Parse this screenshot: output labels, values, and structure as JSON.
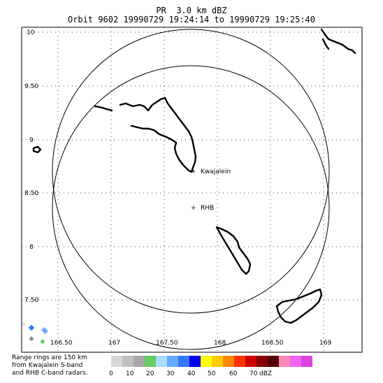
{
  "title": {
    "line1": "PR  3.0 km dBZ",
    "line2": "Orbit 9602 19990729 19:24:14 to 19990729 19:25:40"
  },
  "map": {
    "lat_ticks": [
      "10",
      "9.50",
      "9",
      "8.50",
      "8",
      "7.50"
    ],
    "lon_ticks": [
      "166.50",
      "167",
      "167.50",
      "168",
      "168.50",
      "169"
    ],
    "markers": [
      {
        "symbol": "+",
        "label": "Kwajalein"
      },
      {
        "symbol": "+",
        "label": "RHB"
      }
    ],
    "coastline_color": "#000000",
    "gridline_style": "dotted"
  },
  "footnote": "Range rings are 150 km\nfrom Kwajalein S-band\nand RHB C-band radars.",
  "colorbar": {
    "colors": [
      "#d8d8d8",
      "#c0c0c0",
      "#a8a8a8",
      "#66cc66",
      "#aaddff",
      "#66aaff",
      "#3377ff",
      "#0000ee",
      "#ffff00",
      "#ffcc00",
      "#ff8800",
      "#ff3300",
      "#cc0000",
      "#880000",
      "#550000",
      "#ff88bb",
      "#ee66ee",
      "#dd44dd"
    ],
    "labels": [
      "0",
      "10",
      "20",
      "30",
      "40",
      "50",
      "60",
      "70"
    ],
    "unit": "dBZ"
  }
}
